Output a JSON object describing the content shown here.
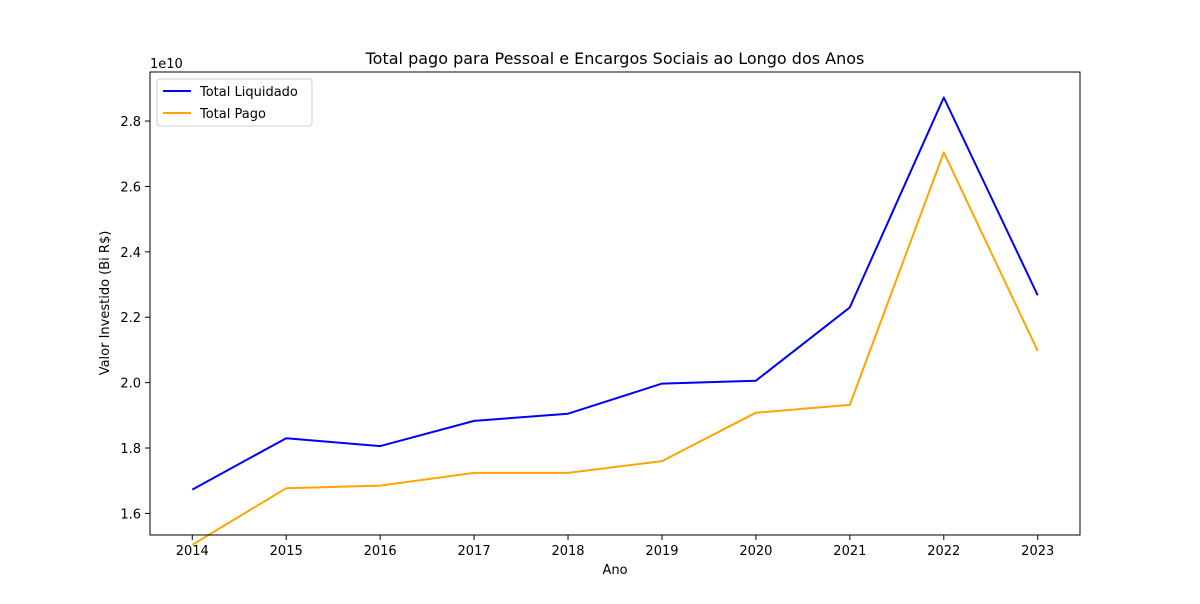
{
  "chart_data": {
    "type": "line",
    "title": "Total pago para Pessoal e Encargos Sociais ao Longo dos Anos",
    "xlabel": "Ano",
    "ylabel": "Valor Investido (Bi R$)",
    "y_offset_label": "1e10",
    "x": [
      "2014",
      "2015",
      "2016",
      "2017",
      "2018",
      "2019",
      "2020",
      "2021",
      "2022",
      "2023"
    ],
    "ylim": [
      1.534,
      2.95
    ],
    "y_ticks": [
      "1.6",
      "1.8",
      "2.0",
      "2.2",
      "2.4",
      "2.6",
      "2.8"
    ],
    "grid": false,
    "legend_position": "top-left",
    "series": [
      {
        "name": "Total Liquidado",
        "color": "#0000ff",
        "values": [
          1.673,
          1.83,
          1.806,
          1.883,
          1.905,
          1.997,
          2.006,
          2.23,
          2.872,
          2.267
        ]
      },
      {
        "name": "Total Pago",
        "color": "#ffa500",
        "values": [
          1.504,
          1.677,
          1.685,
          1.724,
          1.724,
          1.76,
          1.908,
          1.932,
          2.704,
          2.097
        ]
      }
    ]
  }
}
